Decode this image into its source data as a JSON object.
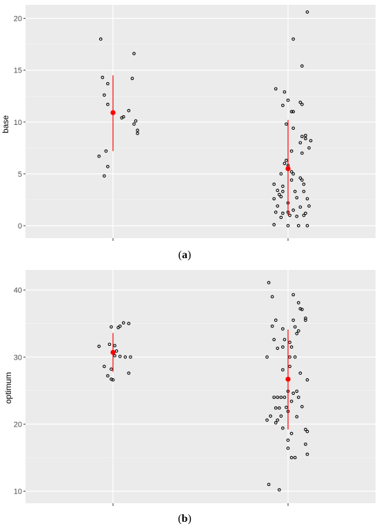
{
  "colors": {
    "panel": "#ebebeb",
    "grid_major": "#ffffff",
    "grid_minor": "#f5f5f5",
    "points": "#000000",
    "summary": "#ff0000"
  },
  "chart_data": [
    {
      "type": "scatter",
      "caption_prefix": "(",
      "caption_letter": "a",
      "caption_suffix": ")",
      "xlabel": "",
      "ylabel": "base",
      "ylim": [
        -1.2,
        21.3
      ],
      "yticks": [
        0,
        5,
        10,
        15,
        20
      ],
      "ytick_labels": [
        "0",
        "5",
        "10",
        "15",
        "20"
      ],
      "groups": [
        {
          "x_center": 1,
          "mean": 10.9,
          "interval": [
            7.2,
            14.5
          ],
          "points": [
            [
              0.93,
              18.0
            ],
            [
              1.12,
              16.6
            ],
            [
              0.94,
              14.3
            ],
            [
              1.11,
              14.2
            ],
            [
              0.97,
              13.7
            ],
            [
              0.95,
              12.6
            ],
            [
              0.97,
              11.7
            ],
            [
              1.09,
              11.1
            ],
            [
              1.05,
              10.4
            ],
            [
              1.06,
              10.5
            ],
            [
              1.13,
              10.1
            ],
            [
              1.12,
              9.8
            ],
            [
              1.14,
              9.2
            ],
            [
              1.14,
              8.9
            ],
            [
              0.96,
              7.2
            ],
            [
              0.92,
              6.7
            ],
            [
              0.97,
              5.7
            ],
            [
              0.95,
              4.8
            ]
          ]
        },
        {
          "x_center": 2,
          "mean": 5.5,
          "interval": [
            1.0,
            10.2
          ],
          "points": [
            [
              2.11,
              20.6
            ],
            [
              2.03,
              18.0
            ],
            [
              2.08,
              15.4
            ],
            [
              1.93,
              13.2
            ],
            [
              1.98,
              12.9
            ],
            [
              2.0,
              12.1
            ],
            [
              2.07,
              11.9
            ],
            [
              1.97,
              11.6
            ],
            [
              2.08,
              11.7
            ],
            [
              2.02,
              11.0
            ],
            [
              2.03,
              11.0
            ],
            [
              1.99,
              9.8
            ],
            [
              2.03,
              9.4
            ],
            [
              2.08,
              8.6
            ],
            [
              2.1,
              8.7
            ],
            [
              2.1,
              8.4
            ],
            [
              2.13,
              8.2
            ],
            [
              2.07,
              8.0
            ],
            [
              2.12,
              7.5
            ],
            [
              2.02,
              7.2
            ],
            [
              2.08,
              7.0
            ],
            [
              1.99,
              6.3
            ],
            [
              1.98,
              6.0
            ],
            [
              2.0,
              5.8
            ],
            [
              2.03,
              5.0
            ],
            [
              2.02,
              5.2
            ],
            [
              1.96,
              5.0
            ],
            [
              2.07,
              4.6
            ],
            [
              2.02,
              4.4
            ],
            [
              2.08,
              4.4
            ],
            [
              2.09,
              4.0
            ],
            [
              1.92,
              4.0
            ],
            [
              1.97,
              3.8
            ],
            [
              1.94,
              3.4
            ],
            [
              2.09,
              3.3
            ],
            [
              2.04,
              3.3
            ],
            [
              1.97,
              3.3
            ],
            [
              1.95,
              3.0
            ],
            [
              1.96,
              2.8
            ],
            [
              2.05,
              2.7
            ],
            [
              2.11,
              2.6
            ],
            [
              1.92,
              2.6
            ],
            [
              2.0,
              2.2
            ],
            [
              2.12,
              1.9
            ],
            [
              1.94,
              1.9
            ],
            [
              2.07,
              1.8
            ],
            [
              2.03,
              1.5
            ],
            [
              1.93,
              1.3
            ],
            [
              2.0,
              1.3
            ],
            [
              2.1,
              1.2
            ],
            [
              1.97,
              1.2
            ],
            [
              2.09,
              1.0
            ],
            [
              2.01,
              1.0
            ],
            [
              2.05,
              0.9
            ],
            [
              1.96,
              0.8
            ],
            [
              1.92,
              0.1
            ],
            [
              2.06,
              0.0
            ],
            [
              2.11,
              0.0
            ],
            [
              2.0,
              0.0
            ]
          ]
        }
      ]
    },
    {
      "type": "scatter",
      "caption_prefix": "(",
      "caption_letter": "b",
      "caption_suffix": ")",
      "xlabel": "",
      "ylabel": "optimum",
      "ylim": [
        8.2,
        43.0
      ],
      "yticks": [
        10,
        20,
        30,
        40
      ],
      "ytick_labels": [
        "10",
        "20",
        "30",
        "40"
      ],
      "groups": [
        {
          "x_center": 1,
          "mean": 30.7,
          "interval": [
            27.8,
            33.6
          ],
          "points": [
            [
              1.06,
              35.1
            ],
            [
              1.09,
              35.0
            ],
            [
              0.99,
              34.5
            ],
            [
              1.03,
              34.4
            ],
            [
              1.04,
              34.6
            ],
            [
              0.98,
              31.9
            ],
            [
              1.01,
              31.7
            ],
            [
              1.01,
              30.2
            ],
            [
              1.04,
              30.1
            ],
            [
              1.07,
              30.0
            ],
            [
              1.1,
              30.0
            ],
            [
              0.95,
              28.6
            ],
            [
              0.99,
              28.2
            ],
            [
              1.09,
              27.6
            ],
            [
              0.97,
              27.2
            ],
            [
              0.99,
              26.7
            ],
            [
              1.0,
              26.6
            ],
            [
              0.92,
              31.6
            ],
            [
              1.02,
              30.9
            ]
          ]
        },
        {
          "x_center": 2,
          "mean": 26.7,
          "interval": [
            19.2,
            34.1
          ],
          "points": [
            [
              1.89,
              41.1
            ],
            [
              2.03,
              39.3
            ],
            [
              1.91,
              39.0
            ],
            [
              2.06,
              38.1
            ],
            [
              2.07,
              37.2
            ],
            [
              2.08,
              37.1
            ],
            [
              2.1,
              35.8
            ],
            [
              2.1,
              35.5
            ],
            [
              1.93,
              35.5
            ],
            [
              2.03,
              35.5
            ],
            [
              2.04,
              34.5
            ],
            [
              1.91,
              34.6
            ],
            [
              1.97,
              34.2
            ],
            [
              2.05,
              33.5
            ],
            [
              2.06,
              33.9
            ],
            [
              1.98,
              32.6
            ],
            [
              1.92,
              32.6
            ],
            [
              2.01,
              32.2
            ],
            [
              2.02,
              31.5
            ],
            [
              1.97,
              31.5
            ],
            [
              1.94,
              31.3
            ],
            [
              1.88,
              30.0
            ],
            [
              2.04,
              30.0
            ],
            [
              2.01,
              30.0
            ],
            [
              2.07,
              27.6
            ],
            [
              1.97,
              28.1
            ],
            [
              2.01,
              28.6
            ],
            [
              2.11,
              26.6
            ],
            [
              2.03,
              24.6
            ],
            [
              2.05,
              24.9
            ],
            [
              2.0,
              24.9
            ],
            [
              1.98,
              24.0
            ],
            [
              1.94,
              24.0
            ],
            [
              1.92,
              24.0
            ],
            [
              1.96,
              24.0
            ],
            [
              2.06,
              24.0
            ],
            [
              2.02,
              23.4
            ],
            [
              2.08,
              22.6
            ],
            [
              1.99,
              22.5
            ],
            [
              1.95,
              22.4
            ],
            [
              1.93,
              22.4
            ],
            [
              2.0,
              21.9
            ],
            [
              1.9,
              21.2
            ],
            [
              1.96,
              21.2
            ],
            [
              2.05,
              21.1
            ],
            [
              1.88,
              20.6
            ],
            [
              1.93,
              20.2
            ],
            [
              1.94,
              20.6
            ],
            [
              1.97,
              19.4
            ],
            [
              2.1,
              19.2
            ],
            [
              2.11,
              18.9
            ],
            [
              2.02,
              18.6
            ],
            [
              2.0,
              17.6
            ],
            [
              2.1,
              17.0
            ],
            [
              2.0,
              16.4
            ],
            [
              2.11,
              15.5
            ],
            [
              2.04,
              15.0
            ],
            [
              2.02,
              15.0
            ],
            [
              1.89,
              11.0
            ],
            [
              1.95,
              10.2
            ]
          ]
        }
      ]
    }
  ]
}
